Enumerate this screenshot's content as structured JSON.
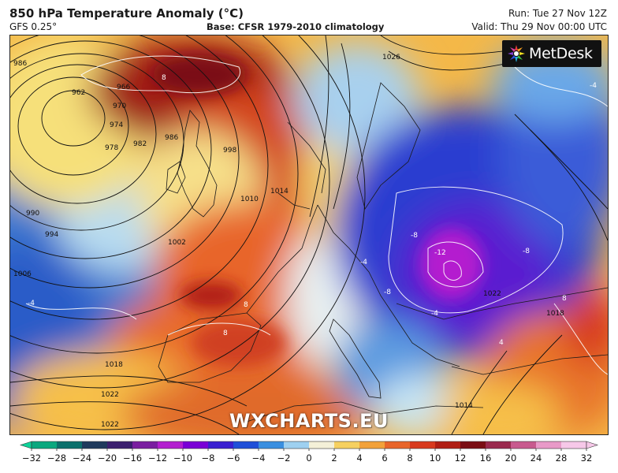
{
  "header": {
    "title": "850 hPa Temperature Anomaly (°C)",
    "model": "GFS 0.25°",
    "base": "Base: CFSR 1979-2010 climatology",
    "run": "Run: Tue 27 Nov 12Z",
    "valid": "Valid: Thu 29 Nov 00:00 UTC"
  },
  "logo": {
    "text": "MetDesk"
  },
  "watermark": {
    "text": "WXCHARTS.EU"
  },
  "map": {
    "isobar_labels": [
      "986",
      "962",
      "966",
      "970",
      "974",
      "978",
      "982",
      "986",
      "998",
      "990",
      "994",
      "1006",
      "1010",
      "1014",
      "1002",
      "1018",
      "1022",
      "1022",
      "1026",
      "1014",
      "1022",
      "1018"
    ],
    "anomaly_labels": [
      "8",
      "-4",
      "-4",
      "8",
      "8",
      "-8",
      "-12",
      "-8",
      "-8",
      "-4",
      "-4",
      "8",
      "4"
    ]
  },
  "colorbar": {
    "ticks": [
      "−32",
      "−28",
      "−24",
      "−20",
      "−16",
      "−12",
      "−10",
      "−8",
      "−6",
      "−4",
      "−2",
      "0",
      "2",
      "4",
      "6",
      "8",
      "10",
      "12",
      "16",
      "20",
      "24",
      "28",
      "32"
    ],
    "colors": [
      "#0fd39a",
      "#0aa87e",
      "#0b6f6b",
      "#1f3a5c",
      "#3b1f6e",
      "#7a1fa0",
      "#b31fcf",
      "#7a00d6",
      "#3a1fd0",
      "#1f4fd8",
      "#3a8fe0",
      "#9ed0f0",
      "#f4f0d8",
      "#f6d060",
      "#f2a13a",
      "#e8652a",
      "#d83a1e",
      "#b01e14",
      "#7a0e14",
      "#9a2a4e",
      "#c85a8e",
      "#e89ac8",
      "#f6c8e8"
    ]
  }
}
